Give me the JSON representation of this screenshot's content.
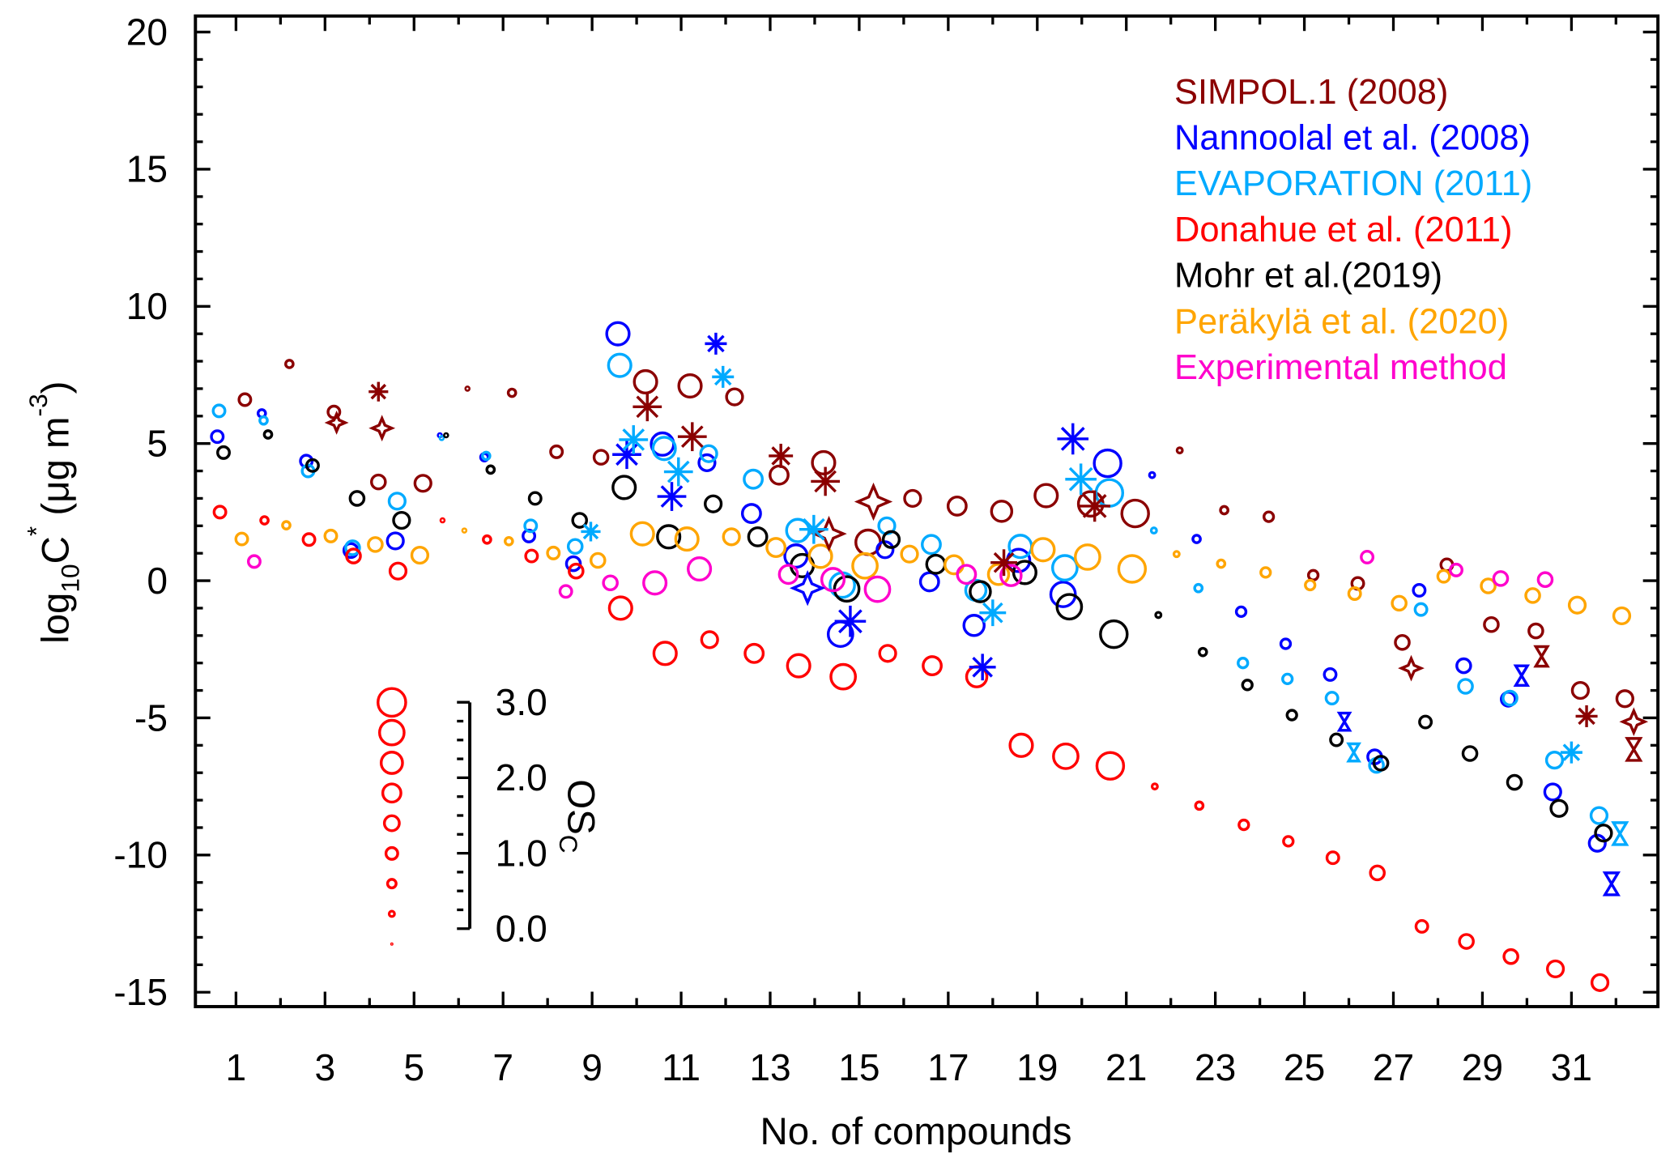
{
  "chart_data": {
    "type": "scatter",
    "xlabel": "No. of compounds",
    "ylabel": "log10C* (μg m-3)",
    "ylabel_parts": {
      "base": "log",
      "sub": "10",
      "main": "C",
      "sup": "*",
      "unit_pre": " (μg m",
      "unit_sup": "-3",
      "unit_post": ")"
    },
    "xlim": [
      0.1,
      32.9
    ],
    "ylim": [
      -15.6,
      20.6
    ],
    "y_ticks": [
      "20",
      "15",
      "10",
      "5",
      "0",
      "-5",
      "-10",
      "-15"
    ],
    "y_tick_values": [
      20,
      15,
      10,
      5,
      0,
      -5,
      -10,
      -15
    ],
    "x_ticks": [
      "1",
      "3",
      "5",
      "7",
      "9",
      "11",
      "13",
      "15",
      "17",
      "19",
      "21",
      "23",
      "25",
      "27",
      "29",
      "31"
    ],
    "grid": false,
    "legend_placement": "top-right",
    "marker_size_encodes": "OSc",
    "compound_osc": [
      1.0,
      0.5,
      1.0,
      1.25,
      1.5,
      0.1,
      0.5,
      1.0,
      1.25,
      2.25,
      2.25,
      1.5,
      1.75,
      2.25,
      2.5,
      1.5,
      1.75,
      2.0,
      2.25,
      2.5,
      2.75,
      0.25,
      0.5,
      0.75,
      0.75,
      1.0,
      1.25,
      1.0,
      1.25,
      1.25,
      1.5,
      1.5
    ],
    "series": [
      {
        "name": "SIMPOL.1 (2008)",
        "color": "#8B0000",
        "values": [
          6.6,
          7.9,
          6.15,
          3.6,
          3.55,
          7.0,
          6.85,
          4.7,
          4.5,
          7.25,
          7.1,
          6.7,
          3.85,
          4.3,
          1.4,
          3.0,
          2.72,
          2.53,
          3.1,
          2.8,
          2.45,
          4.75,
          2.57,
          2.33,
          0.2,
          -0.1,
          -2.25,
          0.58,
          -1.6,
          -1.83,
          -4.0,
          -4.3
        ]
      },
      {
        "name": "Nannoolal et al. (2008)",
        "color": "#0000FF",
        "values": [
          5.25,
          6.1,
          4.36,
          1.1,
          1.45,
          5.3,
          4.5,
          1.63,
          0.62,
          9.0,
          4.98,
          4.3,
          2.45,
          0.9,
          -1.95,
          1.13,
          -0.04,
          -1.63,
          0.74,
          -0.5,
          4.28,
          3.85,
          1.52,
          -1.13,
          -2.3,
          -3.42,
          -6.42,
          -0.35,
          -3.1,
          -4.32,
          -7.7,
          -9.57
        ]
      },
      {
        "name": "EVAPORATION (2011)",
        "color": "#00AAFF",
        "values": [
          6.19,
          5.84,
          4.0,
          1.2,
          2.9,
          5.2,
          4.55,
          2.0,
          1.25,
          7.85,
          4.82,
          4.63,
          3.7,
          1.83,
          -0.16,
          2.0,
          1.32,
          -0.35,
          1.25,
          0.47,
          3.2,
          1.83,
          -0.27,
          -3.0,
          -3.58,
          -4.28,
          -6.73,
          -1.05,
          -3.85,
          -4.28,
          -6.54,
          -8.56
        ]
      },
      {
        "name": "Donahue et al. (2011)",
        "color": "#FF0000",
        "values": [
          2.5,
          2.2,
          1.5,
          0.9,
          0.35,
          2.2,
          1.5,
          0.9,
          0.35,
          -1.0,
          -2.65,
          -2.15,
          -2.65,
          -3.1,
          -3.5,
          -2.65,
          -3.1,
          -3.5,
          -6.0,
          -6.4,
          -6.75,
          -7.5,
          -8.2,
          -8.9,
          -9.5,
          -10.1,
          -10.65,
          -12.6,
          -13.15,
          -13.7,
          -14.15,
          -14.65
        ]
      },
      {
        "name": "Mohr et al.(2019)",
        "color": "#000000",
        "values": [
          4.67,
          5.33,
          4.2,
          3.0,
          2.2,
          5.3,
          4.05,
          3.0,
          2.2,
          3.4,
          1.6,
          2.8,
          1.6,
          0.55,
          -0.3,
          1.5,
          0.6,
          -0.4,
          0.3,
          -0.95,
          -1.95,
          -1.25,
          -2.6,
          -3.8,
          -4.9,
          -5.8,
          -6.65,
          -5.15,
          -6.3,
          -7.35,
          -8.3,
          -9.2
        ]
      },
      {
        "name": "Peräkylä et al. (2020)",
        "color": "#FFA500",
        "values": [
          1.52,
          2.02,
          1.63,
          1.32,
          0.93,
          1.83,
          1.44,
          1.01,
          0.74,
          1.71,
          1.52,
          1.6,
          1.21,
          0.89,
          0.54,
          0.97,
          0.58,
          0.23,
          1.13,
          0.86,
          0.43,
          0.97,
          0.62,
          0.3,
          -0.16,
          -0.47,
          -0.82,
          0.16,
          -0.19,
          -0.54,
          -0.89,
          -1.28
        ]
      },
      {
        "name": "Experimental method",
        "color": "#FF00CC",
        "values": [
          0.7,
          null,
          null,
          null,
          null,
          null,
          null,
          -0.39,
          -0.08,
          -0.08,
          0.43,
          null,
          0.23,
          0.04,
          -0.31,
          null,
          0.23,
          0.19,
          null,
          null,
          null,
          null,
          null,
          null,
          null,
          0.86,
          null,
          0.39,
          0.08,
          0.04,
          null,
          null
        ]
      }
    ],
    "extra_markers": [
      {
        "series": 0,
        "marker": "asterisk",
        "x": 10.24,
        "y": 6.34
      },
      {
        "series": 0,
        "marker": "asterisk",
        "x": 11.25,
        "y": 5.25
      },
      {
        "series": 0,
        "marker": "asterisk",
        "x": 13.24,
        "y": 4.55
      },
      {
        "series": 0,
        "marker": "asterisk",
        "x": 14.24,
        "y": 3.62
      },
      {
        "series": 0,
        "marker": "asterisk",
        "x": 4.2,
        "y": 6.89
      },
      {
        "series": 0,
        "marker": "star4",
        "x": 4.28,
        "y": 5.56
      },
      {
        "series": 0,
        "marker": "star4",
        "x": 3.26,
        "y": 5.76
      },
      {
        "series": 0,
        "marker": "asterisk",
        "x": 18.25,
        "y": 0.66
      },
      {
        "series": 0,
        "marker": "asterisk",
        "x": 20.29,
        "y": 2.72
      },
      {
        "series": 0,
        "marker": "star4",
        "x": 15.32,
        "y": 2.88
      },
      {
        "series": 0,
        "marker": "star4",
        "x": 14.32,
        "y": 1.71
      },
      {
        "series": 0,
        "marker": "asterisk",
        "x": 31.34,
        "y": -4.94
      },
      {
        "series": 0,
        "marker": "star4",
        "x": 32.4,
        "y": -5.14
      },
      {
        "series": 0,
        "marker": "bowtie",
        "x": 32.4,
        "y": -6.15
      },
      {
        "series": 0,
        "marker": "bowtie",
        "x": 30.33,
        "y": -2.76
      },
      {
        "series": 0,
        "marker": "star4",
        "x": 27.4,
        "y": -3.19
      },
      {
        "series": 1,
        "marker": "asterisk",
        "x": 11.78,
        "y": 8.64
      },
      {
        "series": 1,
        "marker": "asterisk",
        "x": 9.78,
        "y": 4.6
      },
      {
        "series": 1,
        "marker": "asterisk",
        "x": 10.79,
        "y": 3.07
      },
      {
        "series": 1,
        "marker": "asterisk",
        "x": 14.8,
        "y": -1.48
      },
      {
        "series": 1,
        "marker": "asterisk",
        "x": 19.8,
        "y": 5.17
      },
      {
        "series": 1,
        "marker": "asterisk",
        "x": 17.77,
        "y": -3.15
      },
      {
        "series": 1,
        "marker": "bowtie",
        "x": 31.9,
        "y": -11.05
      },
      {
        "series": 1,
        "marker": "bowtie",
        "x": 25.9,
        "y": -5.14
      },
      {
        "series": 1,
        "marker": "star4",
        "x": 13.84,
        "y": -0.27
      },
      {
        "series": 1,
        "marker": "bowtie",
        "x": 29.88,
        "y": -3.46
      },
      {
        "series": 2,
        "marker": "asterisk",
        "x": 9.93,
        "y": 5.14
      },
      {
        "series": 2,
        "marker": "asterisk",
        "x": 10.94,
        "y": 3.97
      },
      {
        "series": 2,
        "marker": "asterisk",
        "x": 11.94,
        "y": 7.43
      },
      {
        "series": 2,
        "marker": "asterisk",
        "x": 8.97,
        "y": 1.79
      },
      {
        "series": 2,
        "marker": "asterisk",
        "x": 13.98,
        "y": 1.87
      },
      {
        "series": 2,
        "marker": "asterisk",
        "x": 19.98,
        "y": 3.7
      },
      {
        "series": 2,
        "marker": "asterisk",
        "x": 18.0,
        "y": -1.17
      },
      {
        "series": 2,
        "marker": "bowtie",
        "x": 26.11,
        "y": -6.26
      },
      {
        "series": 2,
        "marker": "bowtie",
        "x": 32.09,
        "y": -9.22
      },
      {
        "series": 2,
        "marker": "asterisk",
        "x": 31.0,
        "y": -6.26
      }
    ],
    "osc_legend": {
      "title_main": "OS",
      "title_sub": "C",
      "ticks": [
        "3.0",
        "2.0",
        "1.0",
        "0.0"
      ],
      "tick_values": [
        3,
        2,
        1,
        0
      ],
      "color": "#FF0000"
    }
  }
}
